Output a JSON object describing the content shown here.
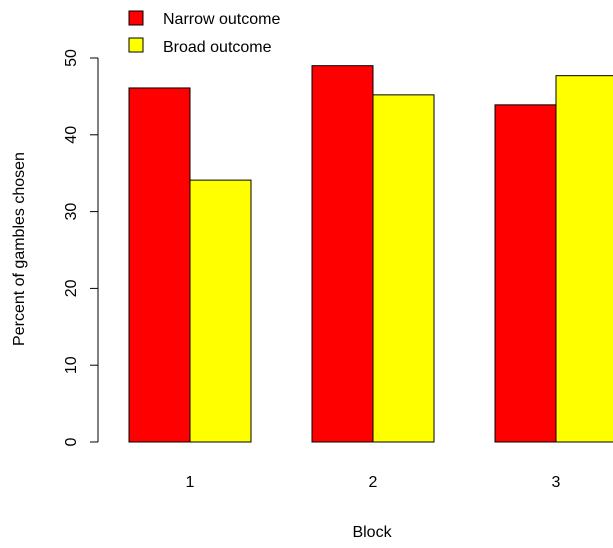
{
  "chart_data": {
    "type": "bar",
    "categories": [
      "1",
      "2",
      "3"
    ],
    "series": [
      {
        "name": "Narrow outcome",
        "values": [
          46.1,
          49.0,
          43.9
        ],
        "color": "#ff0000"
      },
      {
        "name": "Broad outcome",
        "values": [
          34.1,
          45.2,
          47.7
        ],
        "color": "#ffff00"
      }
    ],
    "xlabel": "Block",
    "ylabel": "Percent of gambles chosen",
    "ylim": [
      0,
      50
    ],
    "yticks": [
      "0",
      "10",
      "20",
      "30",
      "40",
      "50"
    ],
    "grid": false,
    "legend": "top-left"
  }
}
